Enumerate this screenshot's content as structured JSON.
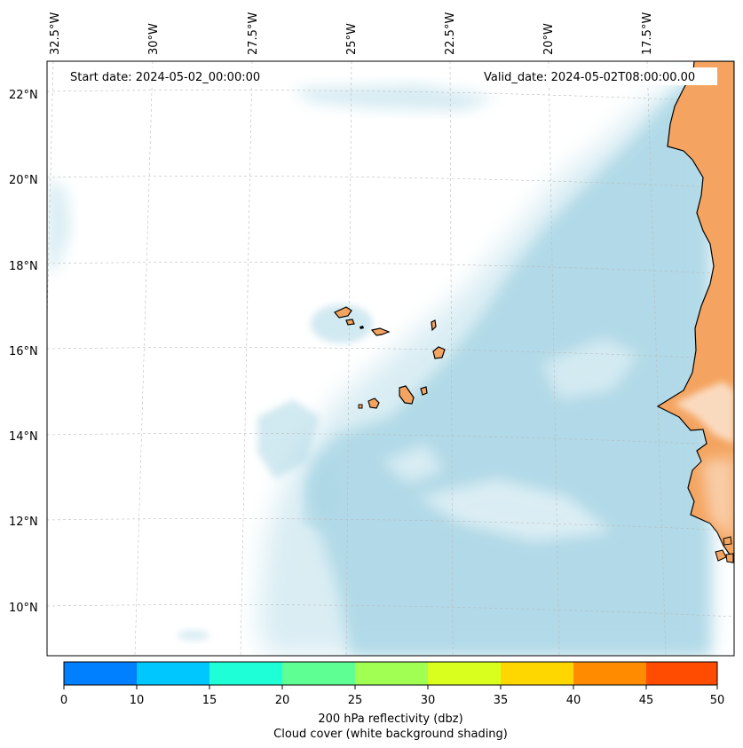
{
  "map": {
    "start_date_label": "Start date: 2024-05-02_00:00:00",
    "valid_date_label": "Valid_date: 2024-05-02T08:00:00.00",
    "lon_labels": [
      "32.5°W",
      "30°W",
      "27.5°W",
      "25°W",
      "22.5°W",
      "20°W",
      "17.5°W"
    ],
    "lat_labels": [
      "22°N",
      "20°N",
      "18°N",
      "16°N",
      "14°N",
      "12°N",
      "10°N"
    ],
    "colors": {
      "land": "#f4a460",
      "ocean": "#ffffff",
      "cloud": "#add8e6",
      "coastline": "#000000",
      "gridline": "#bbbbbb"
    },
    "features": {
      "islands": "Cabo Verde",
      "coast": "West Africa (Senegal, Gambia, Guinea-Bissau)"
    }
  },
  "colorbar": {
    "ticks": [
      "0",
      "10",
      "15",
      "20",
      "25",
      "30",
      "35",
      "40",
      "45",
      "50"
    ],
    "colors": [
      "#007fff",
      "#00c8ff",
      "#1effd8",
      "#5eff93",
      "#a0ff52",
      "#d8ff1e",
      "#ffd700",
      "#ff8c00",
      "#ff4c00"
    ],
    "label_line1": "200 hPa reflectivity (dbz)",
    "label_line2": "Cloud cover (white background shading)"
  }
}
